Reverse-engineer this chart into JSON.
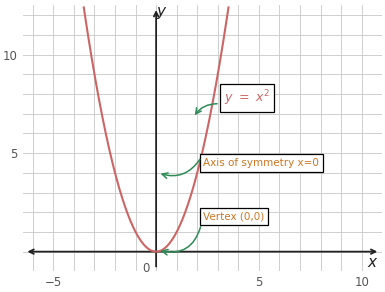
{
  "xlabel": "x",
  "ylabel": "y",
  "xlim": [
    -6.5,
    11.0
  ],
  "ylim": [
    -1.0,
    12.5
  ],
  "xticks": [
    -5,
    5,
    10
  ],
  "yticks": [
    5,
    10
  ],
  "x_origin_label": "0",
  "grid_color": "#c8c8c8",
  "grid_linewidth": 0.6,
  "curve_color": "#cc6666",
  "curve_linewidth": 1.5,
  "axis_color": "#222222",
  "annotation_color": "#2e8b57",
  "background_color": "#ffffff",
  "label1_text": "$y \\ = \\ x^2$",
  "label2_text": "Axis of symmetry x=0",
  "label3_text": "Vertex (0,0)",
  "label1_color": "#cc6666",
  "label2_color": "#cc7722",
  "label3_color": "#cc7722",
  "label1_fontsize": 9,
  "label2_fontsize": 7.5,
  "label3_fontsize": 7.5,
  "tick_fontsize": 8.5,
  "axis_label_fontsize": 11
}
